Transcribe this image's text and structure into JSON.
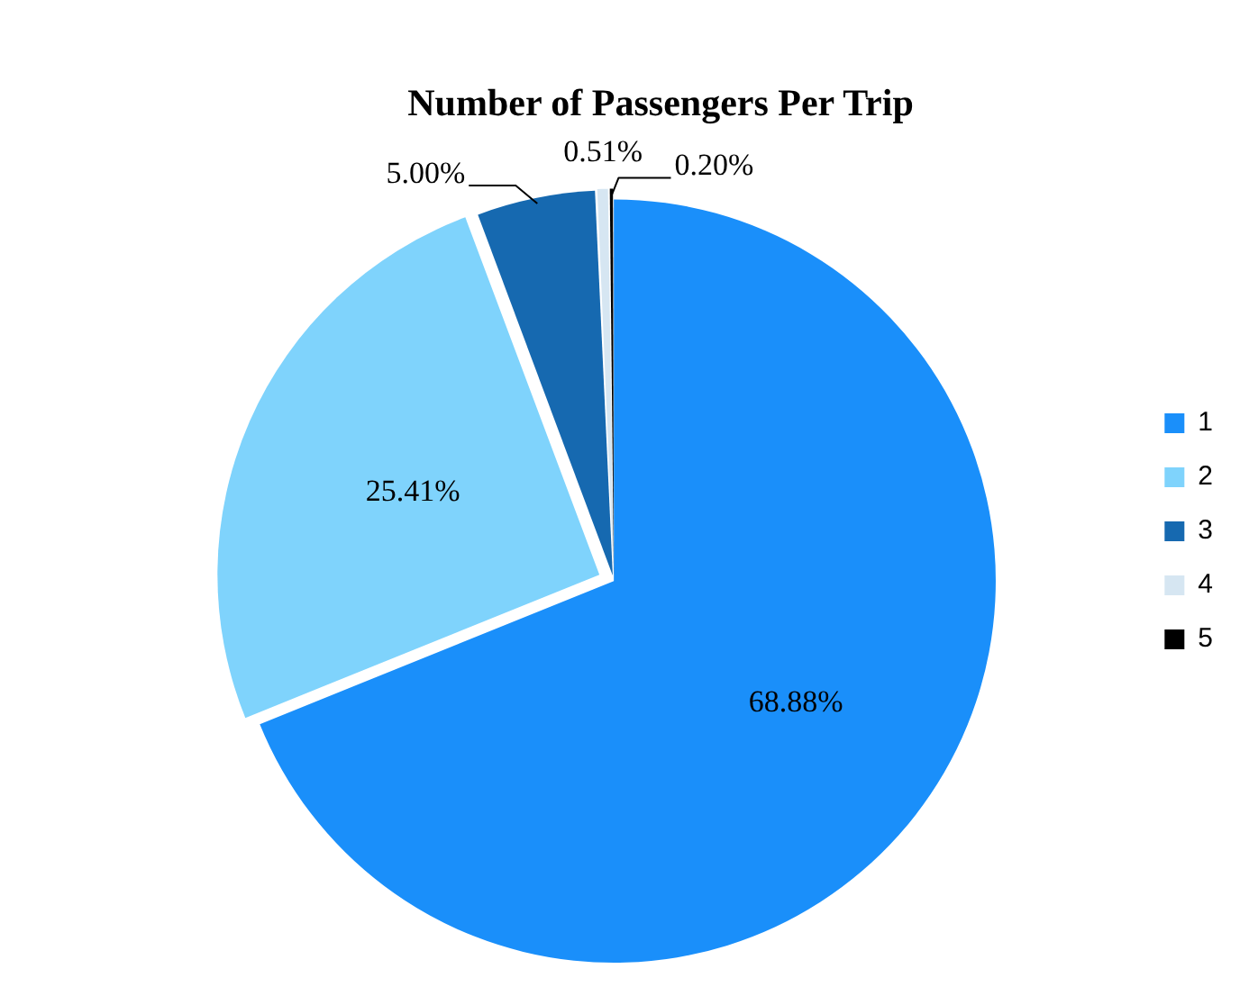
{
  "chart_data": {
    "type": "pie",
    "title": "Number of Passengers Per Trip",
    "categories": [
      "1",
      "2",
      "3",
      "4",
      "5"
    ],
    "values": [
      68.88,
      25.41,
      5.0,
      0.51,
      0.2
    ],
    "value_labels": [
      "68.88%",
      "25.41%",
      "5.00%",
      "0.51%",
      "0.20%"
    ],
    "colors": [
      "#1a8ffa",
      "#7fd3fc",
      "#1669b0",
      "#d6e6f2",
      "#000000"
    ],
    "legend": "right"
  }
}
